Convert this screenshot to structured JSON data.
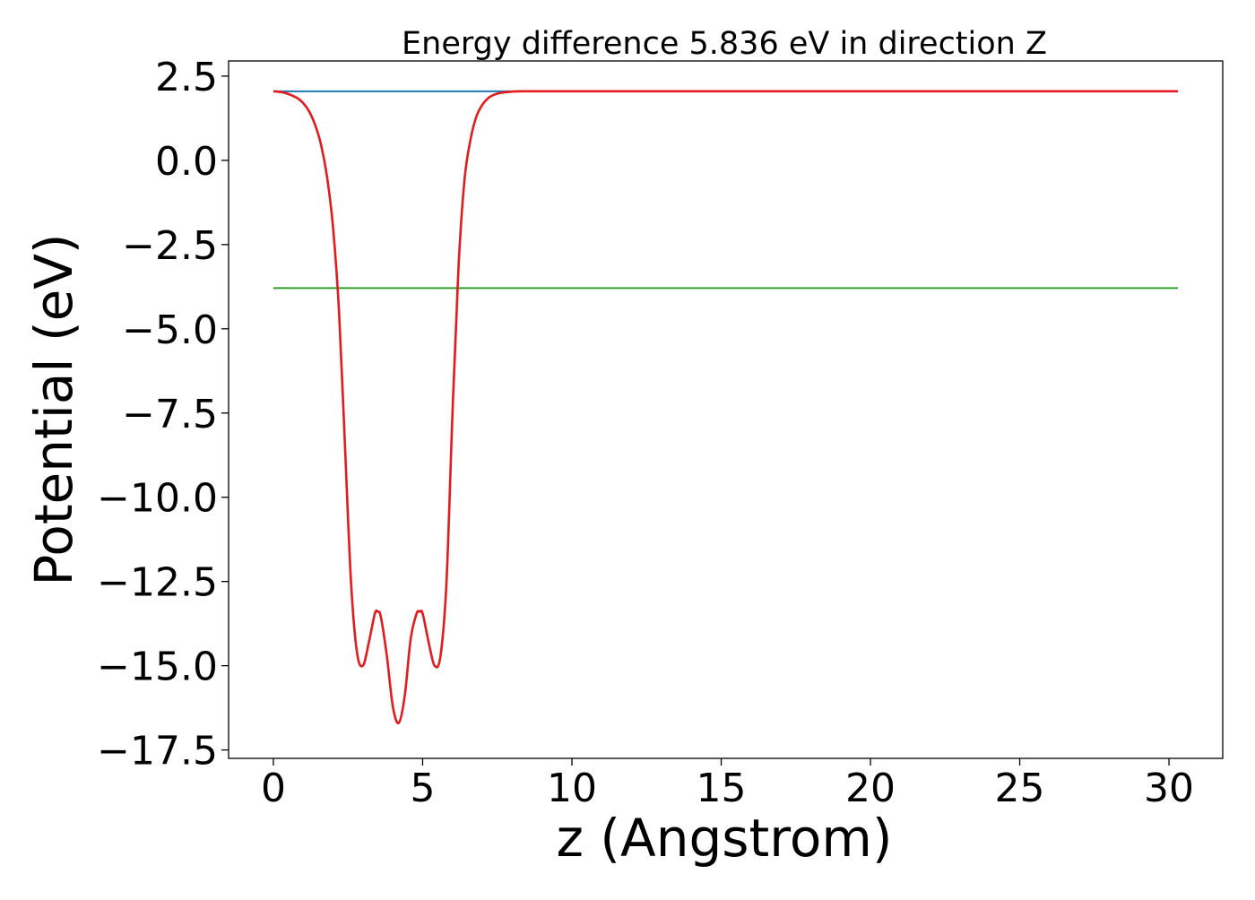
{
  "chart_data": {
    "type": "line",
    "title": "Energy difference 5.836 eV in direction Z",
    "xlabel": "z (Angstrom)",
    "ylabel": "Potential (eV)",
    "xlim": [
      -1.5,
      31.8
    ],
    "ylim": [
      -17.75,
      2.95
    ],
    "xticks": [
      0,
      5,
      10,
      15,
      20,
      25,
      30
    ],
    "xtick_labels": [
      "0",
      "5",
      "10",
      "15",
      "20",
      "25",
      "30"
    ],
    "yticks": [
      2.5,
      0.0,
      -2.5,
      -5.0,
      -7.5,
      -10.0,
      -12.5,
      -15.0,
      -17.5
    ],
    "ytick_labels": [
      "2.5",
      "0.0",
      "−2.5",
      "−5.0",
      "−7.5",
      "−10.0",
      "−12.5",
      "−15.0",
      "−17.5"
    ],
    "grid": false,
    "colors": {
      "potential": "#e41a1c",
      "vacuum_level": "#1f77b4",
      "fermi_level": "#2ca02c",
      "plateau_average": "#7b5fa0"
    },
    "series": [
      {
        "key": "vacuum_level",
        "style": "hline",
        "x": [
          0.0,
          30.3
        ],
        "y": [
          2.05,
          2.05
        ]
      },
      {
        "key": "fermi_level",
        "style": "hline",
        "x": [
          0.0,
          30.3
        ],
        "y": [
          -3.79,
          -3.79
        ]
      },
      {
        "key": "plateau_average",
        "style": "line",
        "x": [
          8.5,
          30.3
        ],
        "y": [
          2.05,
          2.05
        ]
      },
      {
        "key": "potential",
        "style": "line",
        "x": [
          0.0,
          0.4,
          0.8,
          1.0,
          1.2,
          1.4,
          1.6,
          1.8,
          2.0,
          2.2,
          2.4,
          2.6,
          2.8,
          3.0,
          3.2,
          3.4,
          3.5,
          3.6,
          3.8,
          4.0,
          4.2,
          4.4,
          4.6,
          4.8,
          4.9,
          5.0,
          5.2,
          5.4,
          5.6,
          5.8,
          6.0,
          6.2,
          6.4,
          6.6,
          6.8,
          7.0,
          7.2,
          7.4,
          7.6,
          8.0,
          8.5,
          9.0,
          10.0,
          15.0,
          20.0,
          25.0,
          30.3
        ],
        "y": [
          2.05,
          2.0,
          1.85,
          1.7,
          1.45,
          1.05,
          0.45,
          -0.5,
          -2.0,
          -4.5,
          -8.5,
          -12.5,
          -14.6,
          -15.0,
          -14.3,
          -13.45,
          -13.4,
          -13.55,
          -14.7,
          -16.2,
          -16.7,
          -15.9,
          -14.2,
          -13.45,
          -13.4,
          -13.45,
          -14.3,
          -15.0,
          -14.7,
          -12.5,
          -7.5,
          -3.2,
          -0.6,
          0.6,
          1.3,
          1.65,
          1.85,
          1.95,
          2.0,
          2.04,
          2.05,
          2.05,
          2.05,
          2.05,
          2.05,
          2.05,
          2.05
        ]
      }
    ]
  }
}
